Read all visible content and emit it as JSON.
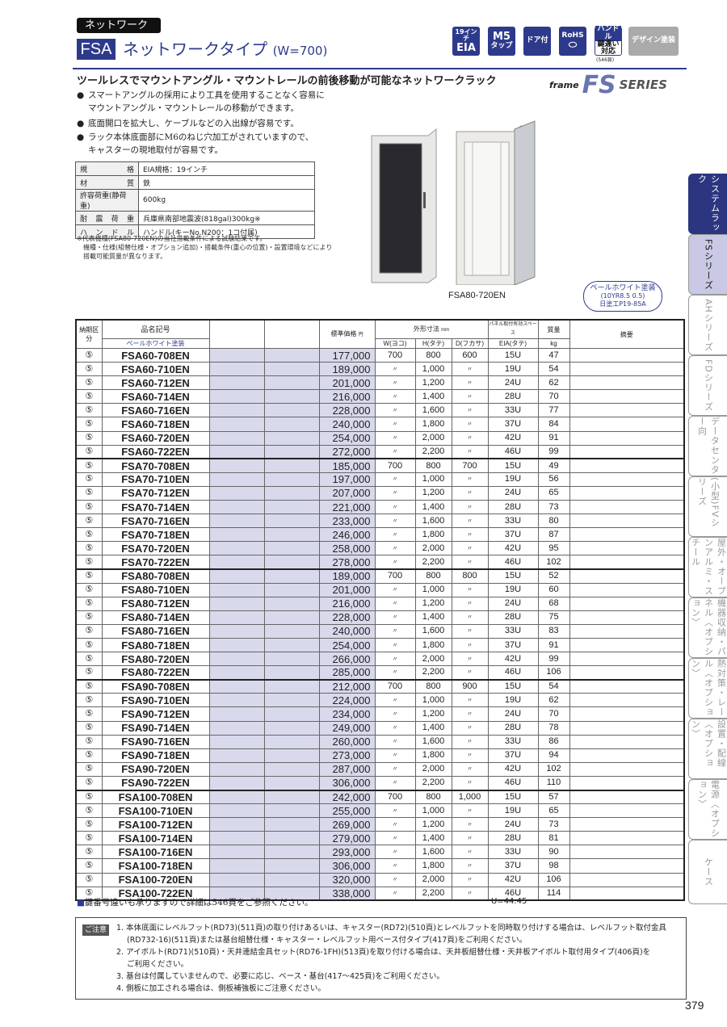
{
  "header": {
    "category_tag": "ネットワーク",
    "series_code": "FSA",
    "title": "ネットワークタイプ",
    "title_suffix": "(W=700)"
  },
  "feature_icons": [
    {
      "name": "eia-19inch",
      "line1": "19インチ",
      "line2": "EIA"
    },
    {
      "name": "m5-tap",
      "line1": "M5",
      "line2": "タップ"
    },
    {
      "name": "door",
      "line1": "ドア付",
      "line2": ""
    },
    {
      "name": "rohs",
      "line1": "RoHS",
      "line2": ""
    },
    {
      "name": "handle-key",
      "line1": "ハンドル",
      "line2": "鍵違い対応",
      "note": "(546頁)"
    },
    {
      "name": "design-paint",
      "line1": "デザイン塗装",
      "line2": ""
    }
  ],
  "series_logo": {
    "prefix": "frame",
    "mark": "FS",
    "suffix": "SERIES"
  },
  "subheading": "ツールレスでマウントアングル・マウントレールの前後移動が可能なネットワークラック",
  "bullets": [
    [
      "スマートアングルの採用により工具を使用することなく容易に",
      "マウントアングル・マウントレールの移動ができます。"
    ],
    [
      "底面開口を拡大し、ケーブルなどの入出線が容易です。"
    ],
    [
      "ラック本体底面部にM6のねじ穴加工がされていますので、",
      "キャスターの現地取付が容易です。"
    ]
  ],
  "specs": [
    {
      "key": "規格",
      "value": "EIA規格：19インチ"
    },
    {
      "key": "材質",
      "value": "鉄"
    },
    {
      "key": "許容荷重(静荷重)",
      "value": "600kg"
    },
    {
      "key": "耐震荷重",
      "value": "兵庫県南部地震波(818gal)300kg※"
    },
    {
      "key": "ハンドル",
      "value": "ハンドル(キーNo.N200：1コ付属)"
    }
  ],
  "spec_note": [
    "※代表機種(FSA80-720EN)の当社搭載条件による試験結果です。",
    "機種・仕様(組替仕様・オプション追加)・搭載条件(重心の位置)・設置環境などにより",
    "搭載可能質量が異なります。"
  ],
  "image_caption": "FSA80-720EN",
  "color_badge": {
    "name": "ペールホワイト塗装",
    "code": "(10YR8.5 0.5)",
    "ref": "日塗工P19-85A"
  },
  "colors": {
    "brand": "#2d3a8c",
    "tab_active": "#2b3580",
    "tab_selected": "#c9c9e5",
    "cell_highlight": "#d9d9ec"
  },
  "table": {
    "headers": {
      "delivery": "納期区分",
      "part_no": "品名記号",
      "part_sub": "ペールホワイト塗装",
      "price": "標準価格",
      "price_unit": "円",
      "dims": "外形寸法",
      "dims_unit": "mm",
      "w": "W(ヨコ)",
      "h": "H(タテ)",
      "d": "D(フカサ)",
      "panel": "パネル取付有効スペース",
      "eia": "EIA(タテ)",
      "mass": "質量",
      "mass_unit": "kg",
      "remarks": "摘要"
    },
    "rows": [
      [
        "⑤",
        "FSA60-708EN",
        "177,000",
        "700",
        "800",
        "600",
        "15U",
        "47"
      ],
      [
        "⑤",
        "FSA60-710EN",
        "189,000",
        "〃",
        "1,000",
        "〃",
        "19U",
        "54"
      ],
      [
        "⑤",
        "FSA60-712EN",
        "201,000",
        "〃",
        "1,200",
        "〃",
        "24U",
        "62"
      ],
      [
        "⑤",
        "FSA60-714EN",
        "216,000",
        "〃",
        "1,400",
        "〃",
        "28U",
        "70"
      ],
      [
        "⑤",
        "FSA60-716EN",
        "228,000",
        "〃",
        "1,600",
        "〃",
        "33U",
        "77"
      ],
      [
        "⑤",
        "FSA60-718EN",
        "240,000",
        "〃",
        "1,800",
        "〃",
        "37U",
        "84"
      ],
      [
        "⑤",
        "FSA60-720EN",
        "254,000",
        "〃",
        "2,000",
        "〃",
        "42U",
        "91"
      ],
      [
        "⑤",
        "FSA60-722EN",
        "272,000",
        "〃",
        "2,200",
        "〃",
        "46U",
        "99"
      ],
      [
        "⑤",
        "FSA70-708EN",
        "185,000",
        "700",
        "800",
        "700",
        "15U",
        "49"
      ],
      [
        "⑤",
        "FSA70-710EN",
        "197,000",
        "〃",
        "1,000",
        "〃",
        "19U",
        "56"
      ],
      [
        "⑤",
        "FSA70-712EN",
        "207,000",
        "〃",
        "1,200",
        "〃",
        "24U",
        "65"
      ],
      [
        "⑤",
        "FSA70-714EN",
        "221,000",
        "〃",
        "1,400",
        "〃",
        "28U",
        "73"
      ],
      [
        "⑤",
        "FSA70-716EN",
        "233,000",
        "〃",
        "1,600",
        "〃",
        "33U",
        "80"
      ],
      [
        "⑤",
        "FSA70-718EN",
        "246,000",
        "〃",
        "1,800",
        "〃",
        "37U",
        "87"
      ],
      [
        "⑤",
        "FSA70-720EN",
        "258,000",
        "〃",
        "2,000",
        "〃",
        "42U",
        "95"
      ],
      [
        "⑤",
        "FSA70-722EN",
        "278,000",
        "〃",
        "2,200",
        "〃",
        "46U",
        "102"
      ],
      [
        "⑤",
        "FSA80-708EN",
        "189,000",
        "700",
        "800",
        "800",
        "15U",
        "52"
      ],
      [
        "⑤",
        "FSA80-710EN",
        "201,000",
        "〃",
        "1,000",
        "〃",
        "19U",
        "60"
      ],
      [
        "⑤",
        "FSA80-712EN",
        "216,000",
        "〃",
        "1,200",
        "〃",
        "24U",
        "68"
      ],
      [
        "⑤",
        "FSA80-714EN",
        "228,000",
        "〃",
        "1,400",
        "〃",
        "28U",
        "75"
      ],
      [
        "⑤",
        "FSA80-716EN",
        "240,000",
        "〃",
        "1,600",
        "〃",
        "33U",
        "83"
      ],
      [
        "⑤",
        "FSA80-718EN",
        "254,000",
        "〃",
        "1,800",
        "〃",
        "37U",
        "91"
      ],
      [
        "⑤",
        "FSA80-720EN",
        "266,000",
        "〃",
        "2,000",
        "〃",
        "42U",
        "99"
      ],
      [
        "⑤",
        "FSA80-722EN",
        "285,000",
        "〃",
        "2,200",
        "〃",
        "46U",
        "106"
      ],
      [
        "⑤",
        "FSA90-708EN",
        "212,000",
        "700",
        "800",
        "900",
        "15U",
        "54"
      ],
      [
        "⑤",
        "FSA90-710EN",
        "224,000",
        "〃",
        "1,000",
        "〃",
        "19U",
        "62"
      ],
      [
        "⑤",
        "FSA90-712EN",
        "234,000",
        "〃",
        "1,200",
        "〃",
        "24U",
        "70"
      ],
      [
        "⑤",
        "FSA90-714EN",
        "249,000",
        "〃",
        "1,400",
        "〃",
        "28U",
        "78"
      ],
      [
        "⑤",
        "FSA90-716EN",
        "260,000",
        "〃",
        "1,600",
        "〃",
        "33U",
        "86"
      ],
      [
        "⑤",
        "FSA90-718EN",
        "273,000",
        "〃",
        "1,800",
        "〃",
        "37U",
        "94"
      ],
      [
        "⑤",
        "FSA90-720EN",
        "287,000",
        "〃",
        "2,000",
        "〃",
        "42U",
        "102"
      ],
      [
        "⑤",
        "FSA90-722EN",
        "306,000",
        "〃",
        "2,200",
        "〃",
        "46U",
        "110"
      ],
      [
        "⑤",
        "FSA100-708EN",
        "242,000",
        "700",
        "800",
        "1,000",
        "15U",
        "57"
      ],
      [
        "⑤",
        "FSA100-710EN",
        "255,000",
        "〃",
        "1,000",
        "〃",
        "19U",
        "65"
      ],
      [
        "⑤",
        "FSA100-712EN",
        "269,000",
        "〃",
        "1,200",
        "〃",
        "24U",
        "73"
      ],
      [
        "⑤",
        "FSA100-714EN",
        "279,000",
        "〃",
        "1,400",
        "〃",
        "28U",
        "81"
      ],
      [
        "⑤",
        "FSA100-716EN",
        "293,000",
        "〃",
        "1,600",
        "〃",
        "33U",
        "90"
      ],
      [
        "⑤",
        "FSA100-718EN",
        "306,000",
        "〃",
        "1,800",
        "〃",
        "37U",
        "98"
      ],
      [
        "⑤",
        "FSA100-720EN",
        "320,000",
        "〃",
        "2,000",
        "〃",
        "42U",
        "106"
      ],
      [
        "⑤",
        "FSA100-722EN",
        "338,000",
        "〃",
        "2,200",
        "〃",
        "46U",
        "114"
      ]
    ]
  },
  "footer_note": "鍵番号違いも承りますので詳細は546頁をご参照ください。",
  "u_value": "U=44.45",
  "caution": {
    "label": "ご注意",
    "items": [
      [
        "1. 本体底面にレベルフット(RD73)(511頁)の取り付けあるいは、キャスター(RD72)(510頁)とレベルフットを同時取り付けする場合は、レベルフット取付金具",
        "(RD732-16)(511頁)または基台組替仕様・キャスター・レベルフット用ベース付タイプ(417頁)をご利用ください。"
      ],
      [
        "2. アイボルト(RD71)(510頁)・天井連結金具セット(RD76-1FH)(513頁)を取り付ける場合は、天井板組替仕様・天井板アイボルト取付用タイプ(406頁)を",
        "ご利用ください。"
      ],
      [
        "3. 基台は付属していませんので、必要に応じ、ベース・基台(417〜425頁)をご利用ください。"
      ],
      [
        "4. 側板に加工される場合は、側板補強板にご注意ください。"
      ]
    ]
  },
  "side_tabs": [
    "システムラック",
    "FSシリーズ",
    "AHシリーズ",
    "FDシリーズ",
    "データセンター向",
    "(小型)FVシリーズ",
    "屋外・オープンアルミ・スチール",
    "機器収納・パネル〈オプション〉",
    "熱対策・レール〈オプション〉",
    "設置・配線〈オプション〉",
    "電源〈オプション〉",
    "ケース"
  ],
  "page_number": "379"
}
